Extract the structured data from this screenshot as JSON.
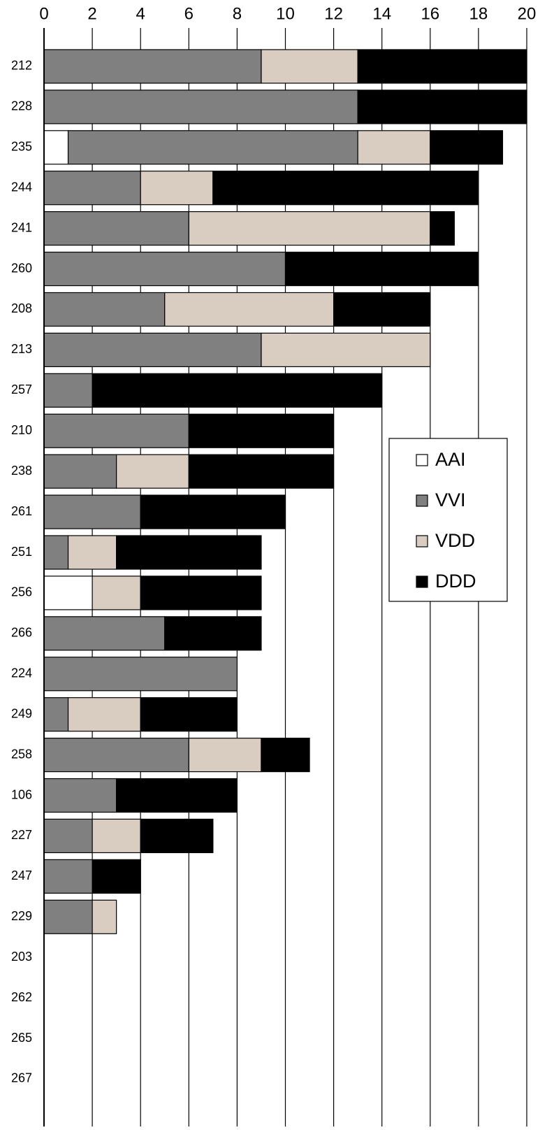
{
  "chart_data": {
    "type": "stacked_barh",
    "categories": [
      "212",
      "228",
      "235",
      "244",
      "241",
      "260",
      "208",
      "213",
      "257",
      "210",
      "238",
      "261",
      "251",
      "256",
      "266",
      "224",
      "249",
      "258",
      "106",
      "227",
      "247",
      "229",
      "203",
      "262",
      "265",
      "267"
    ],
    "series": [
      {
        "name": "AAI",
        "color": "#ffffff",
        "values": [
          0,
          0,
          1,
          0,
          0,
          0,
          0,
          0,
          0,
          0,
          0,
          0,
          0,
          2,
          0,
          0,
          0,
          0,
          0,
          0,
          0,
          0,
          0,
          0,
          0,
          0
        ]
      },
      {
        "name": "VVI",
        "color": "#808080",
        "values": [
          9,
          13,
          12,
          4,
          6,
          10,
          5,
          9,
          2,
          6,
          3,
          4,
          1,
          0,
          5,
          8,
          1,
          6,
          3,
          2,
          2,
          2,
          0,
          0,
          0,
          0
        ]
      },
      {
        "name": "VDD",
        "color": "#d9cdc1",
        "values": [
          4,
          0,
          3,
          3,
          10,
          0,
          7,
          7,
          0,
          0,
          3,
          0,
          2,
          2,
          0,
          0,
          3,
          3,
          0,
          2,
          0,
          1,
          0,
          0,
          0,
          0
        ]
      },
      {
        "name": "DDD",
        "color": "#000000",
        "values": [
          7,
          7,
          3,
          11,
          1,
          8,
          4,
          0,
          12,
          6,
          6,
          6,
          6,
          5,
          4,
          0,
          4,
          2,
          5,
          3,
          2,
          0,
          0,
          0,
          0,
          0
        ]
      }
    ],
    "xlim": [
      0,
      20
    ],
    "xticks": [
      0,
      2,
      4,
      6,
      8,
      10,
      12,
      14,
      16,
      18,
      20
    ],
    "grid": true,
    "legend_position": "right"
  }
}
